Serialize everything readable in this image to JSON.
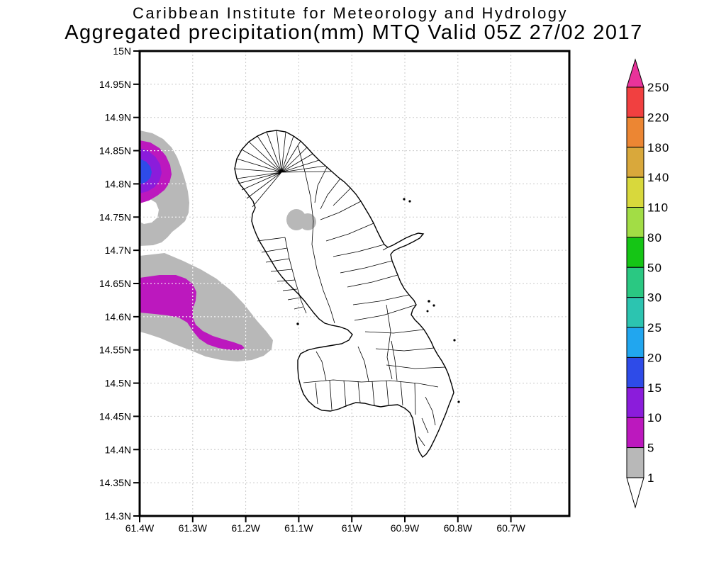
{
  "title": {
    "line1": "Caribbean Institute for Meteorology and Hydrology",
    "line2": "Aggregated precipitation(mm) MTQ Valid 05Z 27/02 2017"
  },
  "axes": {
    "lat_ticks": [
      "15N",
      "14.95N",
      "14.9N",
      "14.85N",
      "14.8N",
      "14.75N",
      "14.7N",
      "14.65N",
      "14.6N",
      "14.55N",
      "14.5N",
      "14.45N",
      "14.4N",
      "14.35N",
      "14.3N"
    ],
    "lon_ticks": [
      "61.4W",
      "61.3W",
      "61.2W",
      "61.1W",
      "61W",
      "60.9W",
      "60.8W",
      "60.7W"
    ]
  },
  "colorbar": {
    "tick_labels": [
      "250",
      "220",
      "180",
      "140",
      "110",
      "80",
      "50",
      "30",
      "25",
      "20",
      "15",
      "10",
      "5",
      "1"
    ],
    "colors_top_to_bottom": [
      "#e9339a",
      "#f14040",
      "#ec8633",
      "#d9a83b",
      "#d8d83c",
      "#a2dd45",
      "#15c515",
      "#2ac882",
      "#2cc4b0",
      "#21a6ef",
      "#2e4be8",
      "#8b1cdb",
      "#bc18be",
      "#b8b8b8"
    ],
    "below_min_color": "#ffffff",
    "outline_color": "#000000"
  },
  "map_colors": {
    "precip_1_5": "#b8b8b8",
    "precip_5_10": "#bc18be",
    "precip_10_15": "#8b1cdb",
    "precip_15_20": "#2e4be8",
    "coastline": "#000000",
    "gridline": "#c9c9c9",
    "gridline_over_shading": "#ffffff",
    "land_fill": "#ffffff"
  },
  "chart_data": {
    "type": "heatmap",
    "title": "Aggregated precipitation(mm) MTQ Valid 05Z 27/02 2017",
    "subtitle": "Caribbean Institute for Meteorology and Hydrology",
    "units": "mm",
    "region": "MTQ (Martinique)",
    "x": {
      "label": "longitude",
      "ticks": [
        "61.4W",
        "61.3W",
        "61.2W",
        "61.1W",
        "61W",
        "60.9W",
        "60.8W",
        "60.7W"
      ]
    },
    "y": {
      "label": "latitude",
      "ticks": [
        "15N",
        "14.95N",
        "14.9N",
        "14.85N",
        "14.8N",
        "14.75N",
        "14.7N",
        "14.65N",
        "14.6N",
        "14.55N",
        "14.5N",
        "14.45N",
        "14.4N",
        "14.35N",
        "14.3N"
      ]
    },
    "contour_levels": [
      1,
      5,
      10,
      15,
      20,
      25,
      30,
      50,
      80,
      110,
      140,
      180,
      220,
      250
    ],
    "grid": "dotted",
    "legend_position": "right vertical colorbar",
    "shaded_cells": [
      {
        "location": "offshore west of northern Martinique, ~14.78N-14.87N at the 61.4W map edge",
        "peak_band": "15-20 mm",
        "bands_present": [
          "1-5",
          "5-10",
          "10-15",
          "15-20"
        ]
      },
      {
        "location": "offshore west of Martinique, ~14.53N-14.7N between 61.4W and ~61.17W",
        "peak_band": "5-10 mm",
        "bands_present": [
          "1-5",
          "5-10"
        ]
      },
      {
        "location": "over north-central Martinique near 14.74N 61.09W",
        "peak_band": "1-5 mm",
        "bands_present": [
          "1-5"
        ]
      }
    ]
  }
}
